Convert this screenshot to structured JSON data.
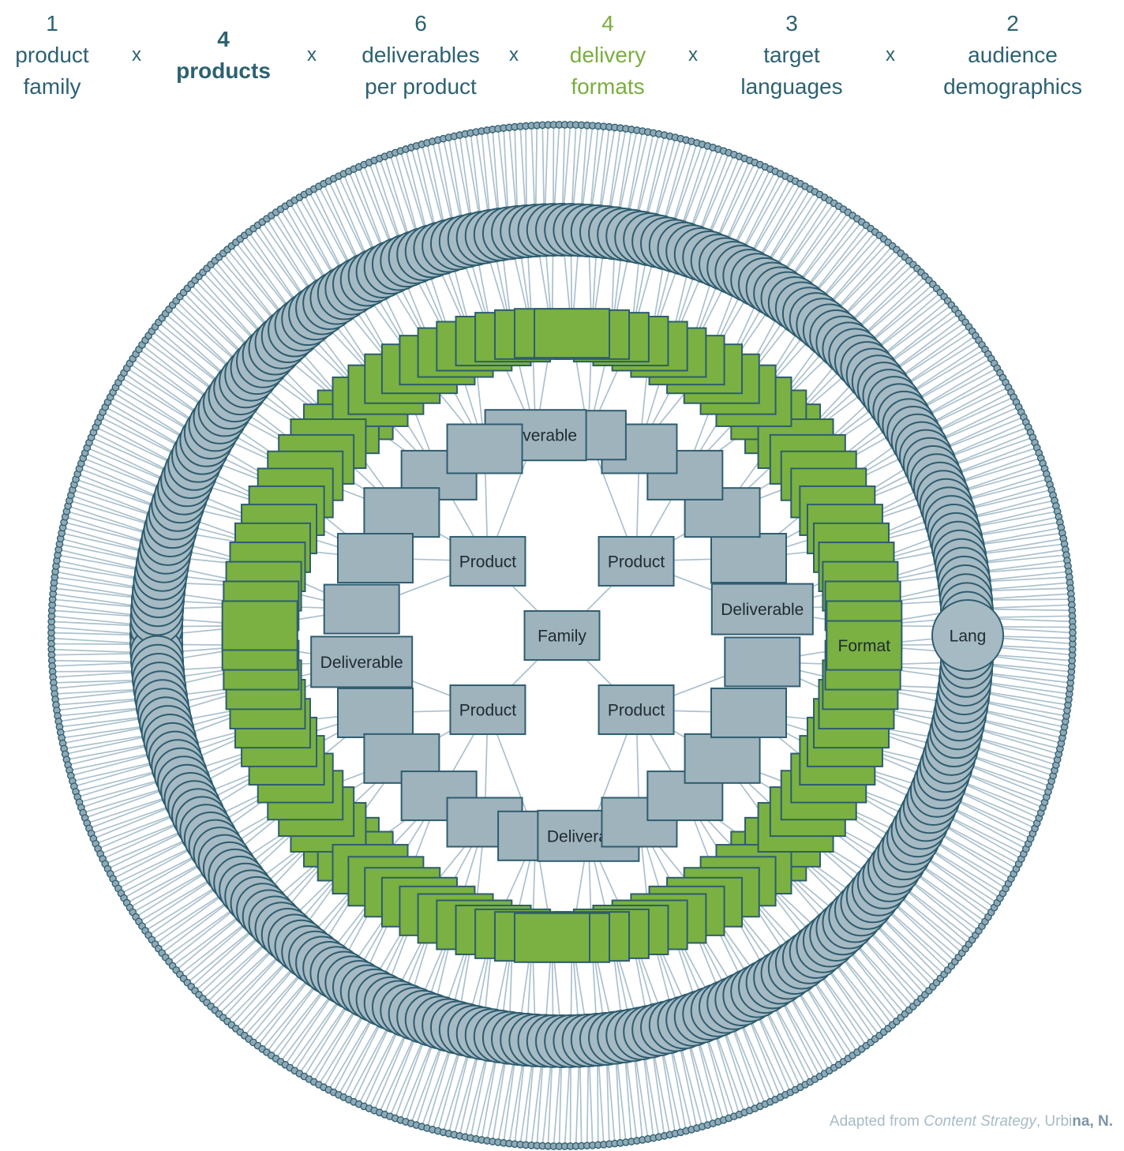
{
  "header": {
    "separator": "x",
    "items": [
      {
        "number": "1",
        "lines": [
          "product",
          "family"
        ],
        "bold": false,
        "accent": false
      },
      {
        "number": "4",
        "lines": [
          "products"
        ],
        "bold": true,
        "accent": false
      },
      {
        "number": "6",
        "lines": [
          "deliverables",
          "per product"
        ],
        "bold": false,
        "accent": false
      },
      {
        "number": "4",
        "lines": [
          "delivery",
          "formats"
        ],
        "bold": false,
        "accent": true
      },
      {
        "number": "3",
        "lines": [
          "target",
          "languages"
        ],
        "bold": false,
        "accent": false
      },
      {
        "number": "2",
        "lines": [
          "audience",
          "demographics"
        ],
        "bold": false,
        "accent": false
      }
    ]
  },
  "diagram": {
    "labels": {
      "family": "Family",
      "product": "Product",
      "deliverable": "Deliverable",
      "format": "Format",
      "language": "Lang"
    },
    "counts": {
      "product_families": 1,
      "products": 4,
      "deliverables_per_product": 6,
      "formats_per_deliverable": 4,
      "languages_per_format": 3,
      "demographics_per_language": 2
    },
    "totals": {
      "deliverables": 24,
      "formats": 96,
      "languages": 288,
      "demographics": 576
    },
    "colors": {
      "teal_text": "#2d6172",
      "green_text": "#7aae3d",
      "node_fill": "#9fb3bd",
      "node_stroke": "#2e5d6f",
      "format_fill": "#7ab142",
      "language_fill": "#a6bac4",
      "dot_fill": "#8fa9b6",
      "line": "#abc1cd",
      "node_label": "#1f2a31"
    }
  },
  "caption": {
    "prefix": "Adapted from ",
    "source_italic": "Content Strategy",
    "middle": ", Urbi",
    "suffix_bold": "na, N.",
    "light_color": "#a8bbc7",
    "dark_color": "#7d96a5"
  }
}
